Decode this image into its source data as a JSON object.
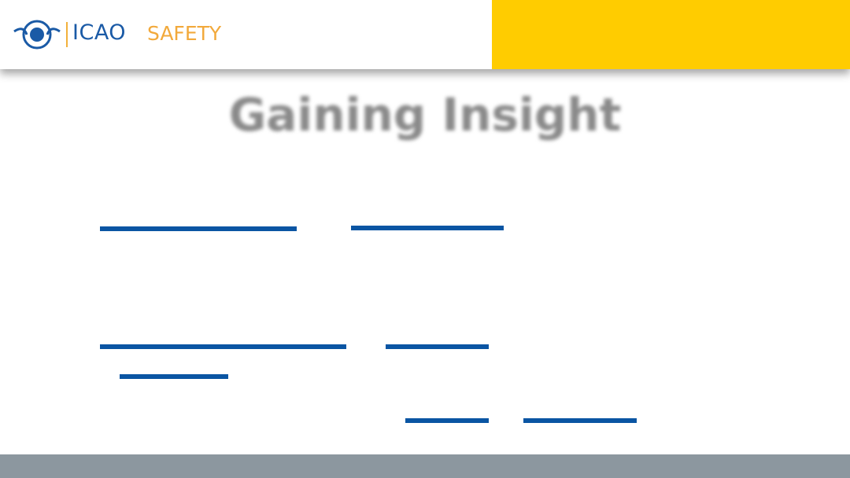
{
  "header": {
    "brand": "ICAO",
    "section": "SAFETY"
  },
  "slide": {
    "title": "Gaining Insight"
  }
}
